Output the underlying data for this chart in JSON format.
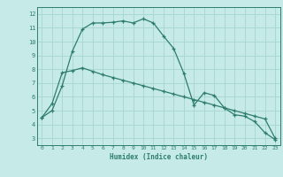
{
  "curve1_x": [
    0,
    1,
    2,
    3,
    4,
    5,
    6,
    7,
    8,
    9,
    10,
    11,
    12,
    13,
    14,
    15,
    16,
    17,
    18,
    19,
    20,
    21,
    22,
    23
  ],
  "curve1_y": [
    4.5,
    5.0,
    6.8,
    9.3,
    10.9,
    11.35,
    11.35,
    11.4,
    11.5,
    11.35,
    11.65,
    11.35,
    10.4,
    9.5,
    7.7,
    5.4,
    6.3,
    6.1,
    5.2,
    4.7,
    4.6,
    4.2,
    3.4,
    2.9
  ],
  "curve2_x": [
    0,
    1,
    2,
    3,
    4,
    5,
    6,
    7,
    8,
    9,
    10,
    11,
    12,
    13,
    14,
    15,
    16,
    17,
    18,
    19,
    20,
    21,
    22,
    23
  ],
  "curve2_y": [
    4.5,
    5.5,
    7.75,
    7.9,
    8.1,
    7.85,
    7.6,
    7.4,
    7.2,
    7.0,
    6.8,
    6.6,
    6.4,
    6.2,
    6.0,
    5.8,
    5.6,
    5.4,
    5.2,
    5.0,
    4.8,
    4.6,
    4.4,
    3.0
  ],
  "line_color": "#2e7d6e",
  "bg_color": "#c5eae7",
  "grid_color": "#a8d5d0",
  "xlabel": "Humidex (Indice chaleur)",
  "xlim": [
    -0.5,
    23.5
  ],
  "ylim": [
    2.5,
    12.5
  ],
  "yticks": [
    3,
    4,
    5,
    6,
    7,
    8,
    9,
    10,
    11,
    12
  ],
  "xticks": [
    0,
    1,
    2,
    3,
    4,
    5,
    6,
    7,
    8,
    9,
    10,
    11,
    12,
    13,
    14,
    15,
    16,
    17,
    18,
    19,
    20,
    21,
    22,
    23
  ]
}
